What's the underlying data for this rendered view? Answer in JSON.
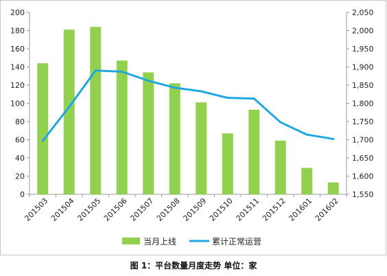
{
  "caption": "图 1：平台数量月度走势    单位：家",
  "chart_data": {
    "type": "bar+line",
    "categories": [
      "201503",
      "201504",
      "201505",
      "201506",
      "201507",
      "201508",
      "201509",
      "201510",
      "201511",
      "201512",
      "201601",
      "201602"
    ],
    "series": [
      {
        "name": "当月上线",
        "type": "bar",
        "axis": "left",
        "color": "#92d050",
        "values": [
          144,
          181,
          184,
          147,
          134,
          122,
          101,
          67,
          93,
          59,
          29,
          13
        ]
      },
      {
        "name": "累计正常运营",
        "type": "line",
        "axis": "right",
        "color": "#1ea7e0",
        "values": [
          1697,
          1790,
          1890,
          1887,
          1862,
          1843,
          1833,
          1815,
          1813,
          1748,
          1714,
          1702
        ]
      }
    ],
    "y_left": {
      "min": 0,
      "max": 200,
      "step": 20,
      "tick_labels": [
        "0",
        "20",
        "40",
        "60",
        "80",
        "100",
        "120",
        "140",
        "160",
        "180",
        "200"
      ]
    },
    "y_right": {
      "min": 1550,
      "max": 2050,
      "step": 50,
      "tick_labels": [
        "1,550",
        "1,600",
        "1,650",
        "1,700",
        "1,750",
        "1,800",
        "1,850",
        "1,900",
        "1,950",
        "2,000",
        "2,050"
      ]
    },
    "grid": false,
    "legend_position": "bottom"
  }
}
